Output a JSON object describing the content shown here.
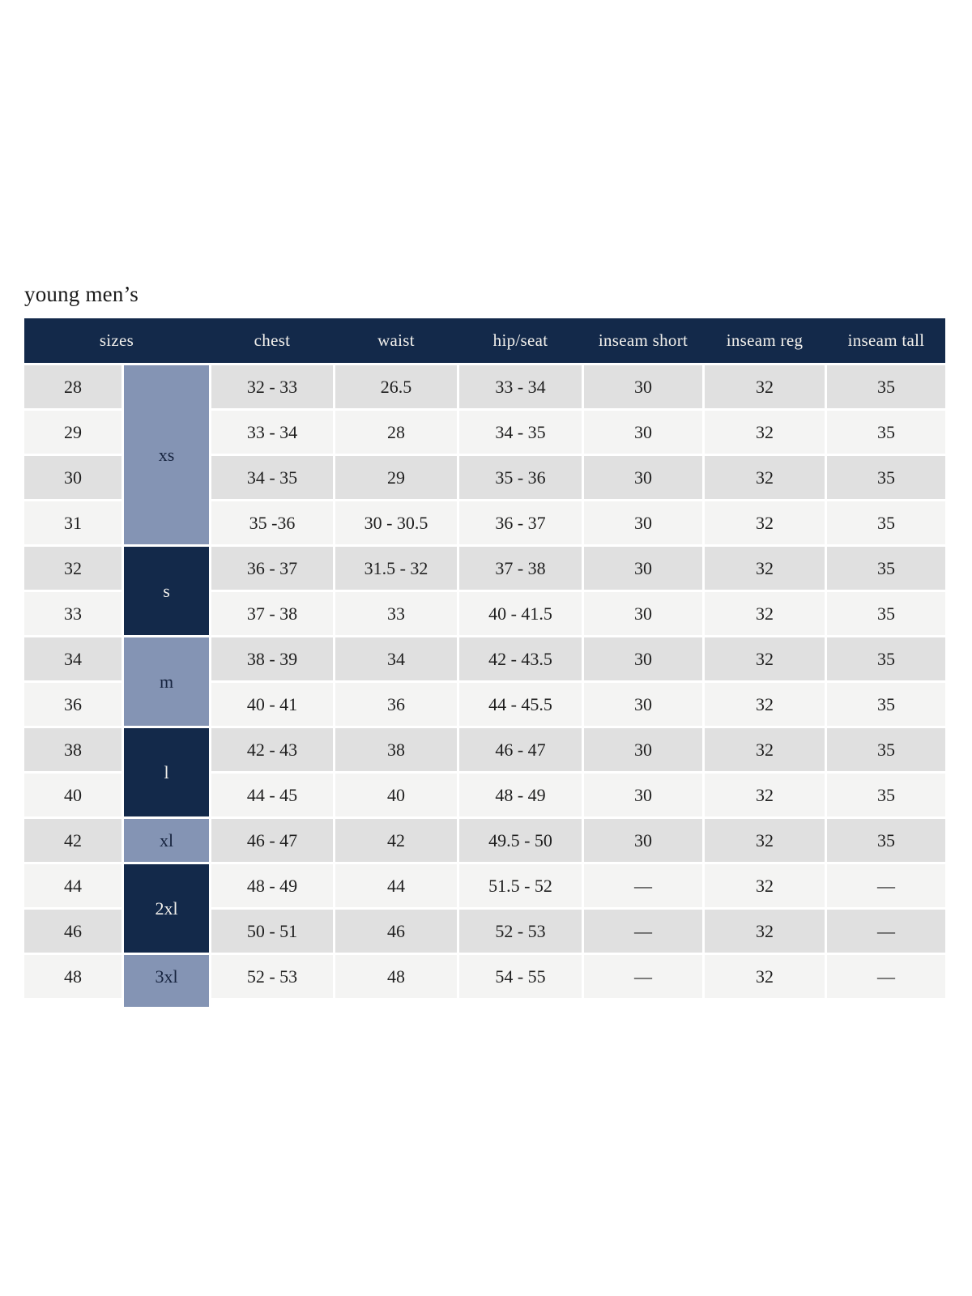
{
  "page_title": "young men’s",
  "table": {
    "column_headers": [
      "sizes",
      "chest",
      "waist",
      "hip/seat",
      "inseam short",
      "inseam reg",
      "inseam tall"
    ],
    "size_groups": [
      {
        "label": "xs",
        "span": 4,
        "variant": "slate"
      },
      {
        "label": "s",
        "span": 2,
        "variant": "navy"
      },
      {
        "label": "m",
        "span": 2,
        "variant": "slate"
      },
      {
        "label": "l",
        "span": 2,
        "variant": "navy"
      },
      {
        "label": "xl",
        "span": 1,
        "variant": "slate"
      },
      {
        "label": "2xl",
        "span": 2,
        "variant": "navy"
      },
      {
        "label": "3xl",
        "span": 1,
        "variant": "slate",
        "extend_bottom": true
      }
    ],
    "rows": [
      {
        "size": "28",
        "chest": "32 - 33",
        "waist": "26.5",
        "hip_seat": "33 - 34",
        "inseam_short": "30",
        "inseam_reg": "32",
        "inseam_tall": "35"
      },
      {
        "size": "29",
        "chest": "33 - 34",
        "waist": "28",
        "hip_seat": "34 - 35",
        "inseam_short": "30",
        "inseam_reg": "32",
        "inseam_tall": "35"
      },
      {
        "size": "30",
        "chest": "34 - 35",
        "waist": "29",
        "hip_seat": "35 - 36",
        "inseam_short": "30",
        "inseam_reg": "32",
        "inseam_tall": "35"
      },
      {
        "size": "31",
        "chest": "35 -36",
        "waist": "30 - 30.5",
        "hip_seat": "36 - 37",
        "inseam_short": "30",
        "inseam_reg": "32",
        "inseam_tall": "35"
      },
      {
        "size": "32",
        "chest": "36 - 37",
        "waist": "31.5 - 32",
        "hip_seat": "37 - 38",
        "inseam_short": "30",
        "inseam_reg": "32",
        "inseam_tall": "35"
      },
      {
        "size": "33",
        "chest": "37 - 38",
        "waist": "33",
        "hip_seat": "40 - 41.5",
        "inseam_short": "30",
        "inseam_reg": "32",
        "inseam_tall": "35"
      },
      {
        "size": "34",
        "chest": "38 - 39",
        "waist": "34",
        "hip_seat": "42 - 43.5",
        "inseam_short": "30",
        "inseam_reg": "32",
        "inseam_tall": "35"
      },
      {
        "size": "36",
        "chest": "40 - 41",
        "waist": "36",
        "hip_seat": "44 - 45.5",
        "inseam_short": "30",
        "inseam_reg": "32",
        "inseam_tall": "35"
      },
      {
        "size": "38",
        "chest": "42 - 43",
        "waist": "38",
        "hip_seat": "46 - 47",
        "inseam_short": "30",
        "inseam_reg": "32",
        "inseam_tall": "35"
      },
      {
        "size": "40",
        "chest": "44 - 45",
        "waist": "40",
        "hip_seat": "48 - 49",
        "inseam_short": "30",
        "inseam_reg": "32",
        "inseam_tall": "35"
      },
      {
        "size": "42",
        "chest": "46 - 47",
        "waist": "42",
        "hip_seat": "49.5 - 50",
        "inseam_short": "30",
        "inseam_reg": "32",
        "inseam_tall": "35"
      },
      {
        "size": "44",
        "chest": "48 - 49",
        "waist": "44",
        "hip_seat": "51.5 - 52",
        "inseam_short": "—",
        "inseam_reg": "32",
        "inseam_tall": "—"
      },
      {
        "size": "46",
        "chest": "50 - 51",
        "waist": "46",
        "hip_seat": "52 - 53",
        "inseam_short": "—",
        "inseam_reg": "32",
        "inseam_tall": "—"
      },
      {
        "size": "48",
        "chest": "52 - 53",
        "waist": "48",
        "hip_seat": "54 - 55",
        "inseam_short": "—",
        "inseam_reg": "32",
        "inseam_tall": "—"
      }
    ]
  },
  "colors": {
    "header_bg": "#13294a",
    "navy_cell": "#13294a",
    "slate_cell": "#8494b4",
    "row_dark": "#e0e0e0",
    "row_light": "#f4f4f3",
    "header_text": "#f2f0ec",
    "cell_text": "#1f1f1f",
    "slate_cell_text": "#16233e",
    "title_text": "#1a1a1a",
    "page_bg": "#ffffff"
  }
}
